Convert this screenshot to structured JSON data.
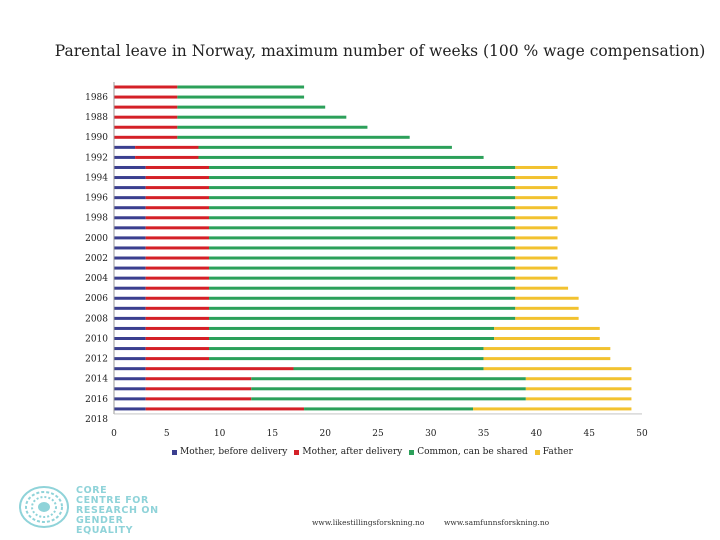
{
  "title": "Parental leave in Norway, maximum number of weeks (100 % wage compensation)",
  "chart_data": {
    "type": "bar",
    "orientation": "horizontal",
    "stacked": true,
    "categories": [
      "1986",
      "1987",
      "1988",
      "1989",
      "1990",
      "1991",
      "1992",
      "1993",
      "1994",
      "1995",
      "1996",
      "1997",
      "1998",
      "1999",
      "2000",
      "2001",
      "2002",
      "2003",
      "2004",
      "2005",
      "2006",
      "2007",
      "2008",
      "2009",
      "2010",
      "2011",
      "2012",
      "2013",
      "2014",
      "2015",
      "2016",
      "2017",
      "2018"
    ],
    "y_tick_labels": [
      "1986",
      "1988",
      "1990",
      "1992",
      "1994",
      "1996",
      "1998",
      "2000",
      "2002",
      "2004",
      "2006",
      "2008",
      "2010",
      "2012",
      "2014",
      "2016",
      "2018"
    ],
    "x_ticks": [
      0,
      5,
      10,
      15,
      20,
      25,
      30,
      35,
      40,
      45,
      50
    ],
    "xlim": [
      0,
      50
    ],
    "series": [
      {
        "name": "Mother, before delivery",
        "color": "#3b3f8f",
        "values": [
          0,
          0,
          0,
          0,
          0,
          0,
          2,
          2,
          3,
          3,
          3,
          3,
          3,
          3,
          3,
          3,
          3,
          3,
          3,
          3,
          3,
          3,
          3,
          3,
          3,
          3,
          3,
          3,
          3,
          3,
          3,
          3,
          3
        ]
      },
      {
        "name": "Mother, after delivery",
        "color": "#d42027",
        "values": [
          6,
          6,
          6,
          6,
          6,
          6,
          6,
          6,
          6,
          6,
          6,
          6,
          6,
          6,
          6,
          6,
          6,
          6,
          6,
          6,
          6,
          6,
          6,
          6,
          6,
          6,
          6,
          6,
          14,
          10,
          10,
          10,
          15
        ]
      },
      {
        "name": "Common, can be shared",
        "color": "#2ca05a",
        "values": [
          12,
          12,
          14,
          16,
          18,
          22,
          24,
          27,
          29,
          29,
          29,
          29,
          29,
          29,
          29,
          29,
          29,
          29,
          29,
          29,
          29,
          29,
          29,
          29,
          27,
          27,
          26,
          26,
          18,
          26,
          26,
          26,
          16
        ]
      },
      {
        "name": "Father",
        "color": "#f2c230",
        "values": [
          0,
          0,
          0,
          0,
          0,
          0,
          0,
          0,
          4,
          4,
          4,
          4,
          4,
          4,
          4,
          4,
          4,
          4,
          4,
          4,
          5,
          6,
          6,
          6,
          10,
          10,
          12,
          12,
          14,
          10,
          10,
          10,
          15
        ]
      }
    ],
    "legend_position": "bottom",
    "grid": false
  },
  "logo": {
    "line1": "CORE",
    "line2": "CENTRE FOR",
    "line3": "RESEARCH ON",
    "line4": "GENDER EQUALITY",
    "color": "#8fd3d9"
  },
  "footer": {
    "link1": "www.likestillingsforskning.no",
    "link2": "www.samfunnsforskning.no"
  }
}
